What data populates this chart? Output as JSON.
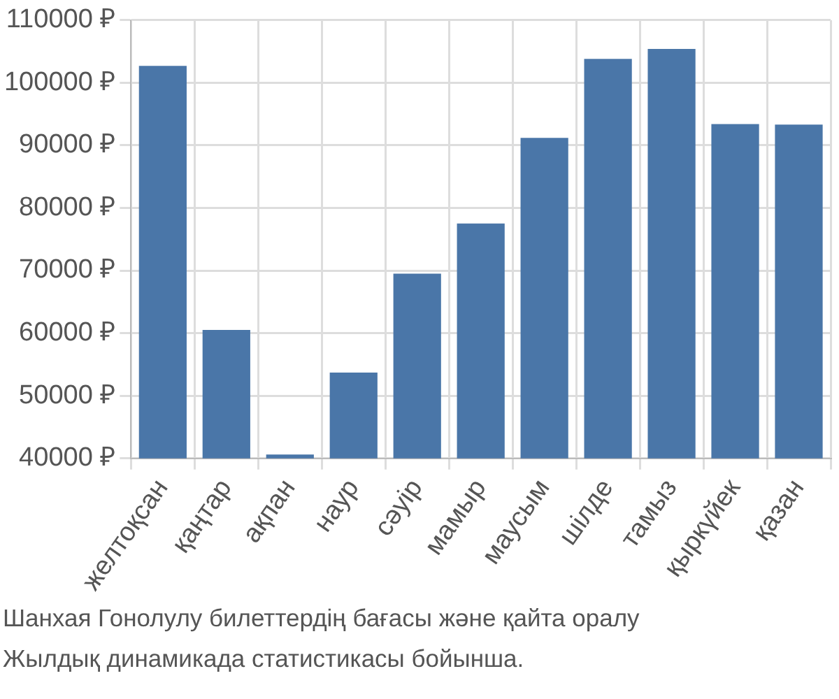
{
  "chart_data": {
    "type": "bar",
    "categories": [
      "желтоқсан",
      "қаңтар",
      "ақпан",
      "наур",
      "сәуір",
      "мамыр",
      "маусым",
      "шілде",
      "тамыз",
      "қыркүйек",
      "қазан"
    ],
    "values": [
      102700,
      60500,
      40600,
      53700,
      69500,
      77500,
      91200,
      103800,
      105400,
      93400,
      93300
    ],
    "color": "#4a76a8",
    "ylim": [
      40000,
      110000
    ],
    "yticks": [
      {
        "value": 40000,
        "label": "40000 ₽"
      },
      {
        "value": 50000,
        "label": "50000 ₽"
      },
      {
        "value": 60000,
        "label": "60000 ₽"
      },
      {
        "value": 70000,
        "label": "70000 ₽"
      },
      {
        "value": 80000,
        "label": "80000 ₽"
      },
      {
        "value": 90000,
        "label": "90000 ₽"
      },
      {
        "value": 100000,
        "label": "100000 ₽"
      },
      {
        "value": 110000,
        "label": "110000 ₽"
      }
    ],
    "grid": true,
    "annotations": [
      "Шанхая Гонолулу билеттердің бағасы және қайта оралу",
      "Жылдық динамикада статистикасы бойынша."
    ]
  }
}
